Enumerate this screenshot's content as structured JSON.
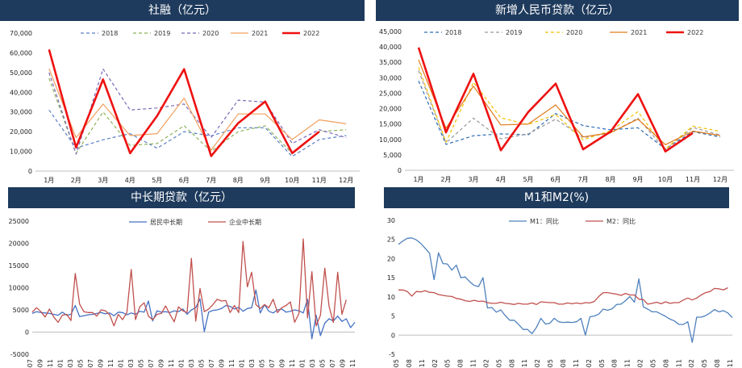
{
  "chart_data": [
    {
      "id": "c1",
      "type": "line",
      "title": "社融（亿元）",
      "categories": [
        "1月",
        "2月",
        "3月",
        "4月",
        "5月",
        "6月",
        "7月",
        "8月",
        "9月",
        "10月",
        "11月",
        "12月"
      ],
      "ylim": [
        0,
        70000
      ],
      "yticks": [
        "0",
        "10,000",
        "20,000",
        "30,000",
        "40,000",
        "50,000",
        "60,000",
        "70,000"
      ],
      "series": [
        {
          "name": "2018",
          "color": "#5a7fc6",
          "dash": "4,3",
          "values": [
            31000,
            11700,
            15900,
            19000,
            11600,
            20000,
            17900,
            22000,
            22000,
            7400,
            16000,
            18000
          ]
        },
        {
          "name": "2019",
          "color": "#8db25a",
          "dash": "4,3",
          "values": [
            47000,
            9000,
            30000,
            13000,
            14000,
            23000,
            10000,
            20000,
            23000,
            9000,
            20000,
            21000
          ]
        },
        {
          "name": "2020",
          "color": "#7a67b5",
          "dash": "4,3",
          "values": [
            50000,
            8600,
            51800,
            31000,
            32000,
            34000,
            17000,
            36000,
            35000,
            14000,
            21000,
            17000
          ]
        },
        {
          "name": "2021",
          "color": "#f0a060",
          "dash": "",
          "values": [
            52000,
            17000,
            34000,
            18000,
            19000,
            37000,
            10600,
            29000,
            29000,
            16000,
            26000,
            24000
          ]
        },
        {
          "name": "2022",
          "color": "#ee1111",
          "dash": "",
          "bold": true,
          "values": [
            61700,
            12000,
            46500,
            9100,
            28000,
            51700,
            7600,
            24300,
            35300,
            9100,
            20000,
            null
          ]
        }
      ]
    },
    {
      "id": "c2",
      "type": "line",
      "title": "新增人民币贷款（亿元）",
      "categories": [
        "1月",
        "2月",
        "3月",
        "4月",
        "5月",
        "6月",
        "7月",
        "8月",
        "9月",
        "10月",
        "11月",
        "12月"
      ],
      "ylim": [
        0,
        45000
      ],
      "yticks": [
        "0",
        "5,000",
        "10,000",
        "15,000",
        "20,000",
        "25,000",
        "30,000",
        "35,000",
        "40,000",
        "45,000"
      ],
      "series": [
        {
          "name": "2018",
          "color": "#2e6db4",
          "dash": "4,3",
          "values": [
            29000,
            8400,
            11200,
            11800,
            11500,
            18400,
            14500,
            13100,
            13800,
            6900,
            12500,
            10800
          ]
        },
        {
          "name": "2019",
          "color": "#9a9a9a",
          "dash": "4,3",
          "values": [
            32300,
            8900,
            16900,
            10200,
            11800,
            16600,
            10600,
            12100,
            16900,
            6600,
            13900,
            11400
          ]
        },
        {
          "name": "2020",
          "color": "#f2c000",
          "dash": "4,3",
          "values": [
            33400,
            9100,
            28500,
            17000,
            14800,
            18100,
            9900,
            12800,
            19000,
            6900,
            14300,
            12600
          ]
        },
        {
          "name": "2021",
          "color": "#e07a1a",
          "dash": "",
          "values": [
            35800,
            13600,
            27300,
            14700,
            15000,
            21200,
            10800,
            12200,
            16600,
            8300,
            12700,
            11300
          ]
        },
        {
          "name": "2022",
          "color": "#ee1111",
          "dash": "",
          "bold": true,
          "values": [
            39800,
            12300,
            31300,
            6500,
            18900,
            28100,
            6800,
            12500,
            24700,
            6100,
            12100,
            null
          ]
        }
      ]
    },
    {
      "id": "c3",
      "type": "line",
      "title": "中长期贷款（亿元）",
      "xlabels": [
        "2017-07",
        "2017-09",
        "2017-11",
        "2018-01",
        "2018-03",
        "2018-05",
        "2018-07",
        "2018-09",
        "2018-11",
        "2019-01",
        "2019-03",
        "2019-05",
        "2019-07",
        "2019-09",
        "2019-11",
        "2020-01",
        "2020-03",
        "2020-05",
        "2020-07",
        "2020-09",
        "2020-11",
        "2021-01",
        "2021-03",
        "2021-05",
        "2021-07",
        "2021-09",
        "2021-11",
        "2022-01",
        "2022-03",
        "2022-05",
        "2022-07",
        "2022-09",
        "2022-11"
      ],
      "ylim": [
        -5000,
        25000
      ],
      "yticks": [
        "-5000",
        "0",
        "5000",
        "10000",
        "15000",
        "20000",
        "25000"
      ],
      "series": [
        {
          "name": "居民中长期",
          "color": "#4472c4",
          "values": [
            4200,
            4600,
            4400,
            4300,
            4200,
            4000,
            3800,
            4500,
            3800,
            4000,
            6000,
            3500,
            3700,
            3900,
            4000,
            4200,
            4400,
            4100,
            4300,
            3700,
            4500,
            4400,
            3900,
            4300,
            4000,
            4700,
            4500,
            7000,
            2500,
            4800,
            4500,
            4600,
            4400,
            4800,
            4600,
            5200,
            4000,
            5000,
            5500,
            7500,
            100,
            4500,
            4900,
            5000,
            5300,
            6000,
            5800,
            5200,
            5600,
            4700,
            5300,
            5500,
            9500,
            4300,
            6200,
            4700,
            4300,
            5000,
            5200,
            4500,
            4700,
            5000,
            4800,
            4300,
            7400,
            -1500,
            3800,
            -800,
            2000,
            3000,
            2500,
            3600,
            2400,
            3000,
            1000,
            2200
          ]
        },
        {
          "name": "企业中长期",
          "color": "#c0504d",
          "values": [
            4500,
            5500,
            4600,
            3400,
            5200,
            3400,
            2200,
            3800,
            4000,
            2600,
            13200,
            6300,
            4600,
            4400,
            4400,
            3600,
            5000,
            4800,
            3900,
            1400,
            4000,
            2800,
            4400,
            14100,
            2800,
            5700,
            6600,
            3600,
            2800,
            4000,
            4200,
            5900,
            4000,
            2300,
            5700,
            4800,
            4400,
            16600,
            2500,
            9800,
            4600,
            5200,
            6200,
            7400,
            7000,
            7100,
            4400,
            6000,
            4400,
            20400,
            10200,
            13500,
            6200,
            5300,
            6200,
            5500,
            7400,
            4400,
            5500,
            6000,
            6800,
            2200,
            4200,
            21000,
            3200,
            13600,
            1400,
            3800,
            14400,
            5800,
            2200,
            13500,
            4000,
            7300
          ]
        }
      ]
    },
    {
      "id": "c4",
      "type": "line",
      "title": "M1和M2(%)",
      "xlabels": [
        "2016-05",
        "2016-08",
        "2016-11",
        "2017-02",
        "2017-05",
        "2017-08",
        "2017-11",
        "2018-02",
        "2018-05",
        "2018-08",
        "2018-11",
        "2019-02",
        "2019-05",
        "2019-08",
        "2019-11",
        "2020-02",
        "2020-05",
        "2020-08",
        "2020-11",
        "2021-02",
        "2021-05",
        "2021-08",
        "2021-11",
        "2022-02",
        "2022-05",
        "2022-08",
        "2022-11"
      ],
      "ylim": [
        -5,
        30
      ],
      "yticks": [
        "-5",
        "0",
        "5",
        "10",
        "15",
        "20",
        "25",
        "30"
      ],
      "series": [
        {
          "name": "M1：同比",
          "color": "#4f81bd",
          "values": [
            23.7,
            24.6,
            25.3,
            25.4,
            24.9,
            24.0,
            22.7,
            21.4,
            14.5,
            21.5,
            18.7,
            18.6,
            17.0,
            18.3,
            15.0,
            15.2,
            14.0,
            13.0,
            12.7,
            15.0,
            7.1,
            7.2,
            6.0,
            6.6,
            5.1,
            3.9,
            3.9,
            2.8,
            1.5,
            1.5,
            0.4,
            2.0,
            4.4,
            2.9,
            3.1,
            4.4,
            3.5,
            3.3,
            3.4,
            3.3,
            3.5,
            4.4,
            0.0,
            4.8,
            5.0,
            5.5,
            6.8,
            6.5,
            6.9,
            8.0,
            8.1,
            9.0,
            10.1,
            8.6,
            14.7,
            7.4,
            6.8,
            6.1,
            6.1,
            5.5,
            4.9,
            4.2,
            3.7,
            2.8,
            2.8,
            3.5,
            -1.9,
            4.7,
            4.7,
            5.1,
            5.8,
            6.7,
            6.1,
            6.4,
            5.8,
            4.6
          ]
        },
        {
          "name": "M2：同比",
          "color": "#c0504d",
          "values": [
            11.8,
            11.8,
            11.4,
            10.2,
            11.4,
            11.3,
            11.6,
            11.2,
            11.1,
            10.6,
            10.4,
            10.2,
            10.1,
            9.6,
            9.4,
            9.0,
            8.8,
            9.1,
            8.8,
            8.9,
            8.5,
            8.3,
            8.3,
            8.6,
            8.3,
            8.2,
            8.0,
            8.3,
            8.1,
            8.1,
            8.4,
            8.0,
            8.7,
            8.6,
            8.5,
            8.5,
            8.1,
            8.1,
            8.4,
            8.2,
            8.4,
            8.2,
            8.5,
            8.4,
            8.8,
            10.1,
            11.1,
            11.1,
            10.9,
            10.7,
            10.4,
            10.9,
            10.5,
            10.5,
            9.4,
            9.3,
            8.1,
            8.3,
            8.6,
            8.2,
            8.7,
            8.3,
            8.5,
            8.5,
            9.2,
            9.7,
            9.2,
            9.7,
            10.5,
            11.1,
            11.4,
            12.2,
            12.1,
            11.8,
            12.4
          ]
        }
      ]
    }
  ]
}
